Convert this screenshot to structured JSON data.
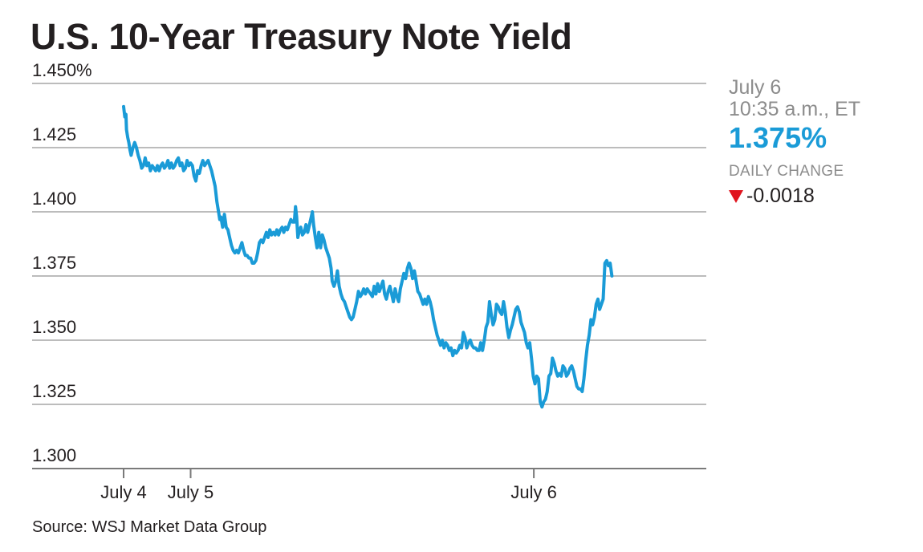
{
  "title": "U.S. 10-Year Treasury Note Yield",
  "source": "Source: WSJ Market Data Group",
  "panel": {
    "date": "July 6",
    "time": "10:35 a.m., ET",
    "value": "1.375%",
    "change_label": "DAILY CHANGE",
    "change_value": "-0.0018",
    "change_direction_icon": "down-triangle-icon"
  },
  "colors": {
    "line": "#1a9bd7",
    "grid": "#a6a6a6",
    "text": "#231f20",
    "muted": "#8c8c8c",
    "down": "#e0141e"
  },
  "chart_data": {
    "type": "line",
    "yticks": [
      "1.450%",
      "1.425",
      "1.400",
      "1.375",
      "1.350",
      "1.325",
      "1.300"
    ],
    "ytick_values": [
      1.45,
      1.425,
      1.4,
      1.375,
      1.35,
      1.325,
      1.3
    ],
    "ylim": [
      1.3,
      1.45
    ],
    "xlim": [
      0,
      1000
    ],
    "xticks": [
      {
        "label": "July 4",
        "x": 0
      },
      {
        "label": "July 5",
        "x": 115
      },
      {
        "label": "July 6",
        "x": 704
      }
    ],
    "grid": "horizontal",
    "series": [
      {
        "points": [
          [
            0,
            1.441
          ],
          [
            2,
            1.437
          ],
          [
            4,
            1.438
          ],
          [
            5,
            1.432
          ],
          [
            7,
            1.429
          ],
          [
            9,
            1.427
          ],
          [
            11,
            1.424
          ],
          [
            13,
            1.422
          ],
          [
            16,
            1.425
          ],
          [
            19,
            1.427
          ],
          [
            22,
            1.425
          ],
          [
            25,
            1.422
          ],
          [
            28,
            1.42
          ],
          [
            31,
            1.417
          ],
          [
            34,
            1.418
          ],
          [
            37,
            1.421
          ],
          [
            40,
            1.418
          ],
          [
            43,
            1.419
          ],
          [
            46,
            1.416
          ],
          [
            49,
            1.418
          ],
          [
            52,
            1.417
          ],
          [
            55,
            1.416
          ],
          [
            58,
            1.418
          ],
          [
            61,
            1.416
          ],
          [
            64,
            1.418
          ],
          [
            67,
            1.419
          ],
          [
            70,
            1.417
          ],
          [
            73,
            1.418
          ],
          [
            76,
            1.42
          ],
          [
            79,
            1.417
          ],
          [
            82,
            1.419
          ],
          [
            85,
            1.417
          ],
          [
            88,
            1.418
          ],
          [
            91,
            1.42
          ],
          [
            94,
            1.421
          ],
          [
            97,
            1.418
          ],
          [
            100,
            1.419
          ],
          [
            103,
            1.416
          ],
          [
            106,
            1.417
          ],
          [
            109,
            1.42
          ],
          [
            112,
            1.418
          ],
          [
            115,
            1.419
          ],
          [
            118,
            1.418
          ],
          [
            121,
            1.414
          ],
          [
            124,
            1.412
          ],
          [
            127,
            1.416
          ],
          [
            130,
            1.415
          ],
          [
            133,
            1.418
          ],
          [
            136,
            1.42
          ],
          [
            139,
            1.418
          ],
          [
            142,
            1.419
          ],
          [
            145,
            1.42
          ],
          [
            148,
            1.418
          ],
          [
            151,
            1.416
          ],
          [
            154,
            1.413
          ],
          [
            157,
            1.41
          ],
          [
            160,
            1.404
          ],
          [
            163,
            1.4
          ],
          [
            165,
            1.397
          ],
          [
            167,
            1.398
          ],
          [
            170,
            1.394
          ],
          [
            173,
            1.399
          ],
          [
            176,
            1.394
          ],
          [
            179,
            1.393
          ],
          [
            182,
            1.39
          ],
          [
            185,
            1.387
          ],
          [
            188,
            1.385
          ],
          [
            191,
            1.384
          ],
          [
            194,
            1.385
          ],
          [
            197,
            1.384
          ],
          [
            200,
            1.386
          ],
          [
            203,
            1.388
          ],
          [
            206,
            1.385
          ],
          [
            209,
            1.383
          ],
          [
            212,
            1.383
          ],
          [
            215,
            1.382
          ],
          [
            218,
            1.382
          ],
          [
            221,
            1.38
          ],
          [
            224,
            1.38
          ],
          [
            227,
            1.381
          ],
          [
            230,
            1.384
          ],
          [
            233,
            1.388
          ],
          [
            236,
            1.389
          ],
          [
            239,
            1.388
          ],
          [
            242,
            1.39
          ],
          [
            245,
            1.392
          ],
          [
            248,
            1.39
          ],
          [
            251,
            1.393
          ],
          [
            254,
            1.391
          ],
          [
            257,
            1.392
          ],
          [
            260,
            1.391
          ],
          [
            263,
            1.393
          ],
          [
            266,
            1.391
          ],
          [
            269,
            1.393
          ],
          [
            272,
            1.394
          ],
          [
            275,
            1.392
          ],
          [
            278,
            1.394
          ],
          [
            281,
            1.393
          ],
          [
            284,
            1.395
          ],
          [
            287,
            1.397
          ],
          [
            290,
            1.396
          ],
          [
            293,
            1.396
          ],
          [
            295,
            1.402
          ],
          [
            297,
            1.398
          ],
          [
            299,
            1.39
          ],
          [
            301,
            1.392
          ],
          [
            304,
            1.394
          ],
          [
            307,
            1.391
          ],
          [
            310,
            1.392
          ],
          [
            313,
            1.395
          ],
          [
            316,
            1.392
          ],
          [
            319,
            1.395
          ],
          [
            322,
            1.398
          ],
          [
            324,
            1.4
          ],
          [
            326,
            1.395
          ],
          [
            329,
            1.39
          ],
          [
            332,
            1.386
          ],
          [
            335,
            1.392
          ],
          [
            338,
            1.386
          ],
          [
            341,
            1.391
          ],
          [
            344,
            1.389
          ],
          [
            347,
            1.386
          ],
          [
            350,
            1.384
          ],
          [
            353,
            1.382
          ],
          [
            356,
            1.378
          ],
          [
            358,
            1.373
          ],
          [
            361,
            1.371
          ],
          [
            364,
            1.373
          ],
          [
            367,
            1.377
          ],
          [
            370,
            1.371
          ],
          [
            373,
            1.368
          ],
          [
            376,
            1.366
          ],
          [
            379,
            1.365
          ],
          [
            382,
            1.363
          ],
          [
            385,
            1.361
          ],
          [
            388,
            1.359
          ],
          [
            391,
            1.358
          ],
          [
            394,
            1.359
          ],
          [
            397,
            1.362
          ],
          [
            400,
            1.365
          ],
          [
            403,
            1.369
          ],
          [
            406,
            1.367
          ],
          [
            409,
            1.368
          ],
          [
            412,
            1.37
          ],
          [
            415,
            1.368
          ],
          [
            418,
            1.37
          ],
          [
            421,
            1.369
          ],
          [
            424,
            1.368
          ],
          [
            427,
            1.367
          ],
          [
            430,
            1.371
          ],
          [
            433,
            1.368
          ],
          [
            436,
            1.372
          ],
          [
            439,
            1.369
          ],
          [
            442,
            1.371
          ],
          [
            445,
            1.373
          ],
          [
            448,
            1.368
          ],
          [
            451,
            1.366
          ],
          [
            454,
            1.369
          ],
          [
            457,
            1.371
          ],
          [
            460,
            1.368
          ],
          [
            463,
            1.365
          ],
          [
            466,
            1.37
          ],
          [
            469,
            1.367
          ],
          [
            472,
            1.365
          ],
          [
            475,
            1.37
          ],
          [
            478,
            1.373
          ],
          [
            481,
            1.376
          ],
          [
            484,
            1.374
          ],
          [
            487,
            1.378
          ],
          [
            490,
            1.38
          ],
          [
            493,
            1.378
          ],
          [
            496,
            1.374
          ],
          [
            499,
            1.377
          ],
          [
            502,
            1.373
          ],
          [
            505,
            1.369
          ],
          [
            508,
            1.368
          ],
          [
            511,
            1.366
          ],
          [
            514,
            1.364
          ],
          [
            517,
            1.366
          ],
          [
            520,
            1.364
          ],
          [
            523,
            1.367
          ],
          [
            526,
            1.365
          ],
          [
            529,
            1.362
          ],
          [
            532,
            1.358
          ],
          [
            535,
            1.355
          ],
          [
            538,
            1.352
          ],
          [
            541,
            1.35
          ],
          [
            544,
            1.348
          ],
          [
            547,
            1.35
          ],
          [
            550,
            1.347
          ],
          [
            553,
            1.349
          ],
          [
            556,
            1.348
          ],
          [
            559,
            1.346
          ],
          [
            562,
            1.347
          ],
          [
            565,
            1.344
          ],
          [
            568,
            1.346
          ],
          [
            571,
            1.345
          ],
          [
            574,
            1.346
          ],
          [
            577,
            1.348
          ],
          [
            580,
            1.347
          ],
          [
            583,
            1.353
          ],
          [
            586,
            1.351
          ],
          [
            589,
            1.347
          ],
          [
            592,
            1.349
          ],
          [
            595,
            1.35
          ],
          [
            598,
            1.348
          ],
          [
            601,
            1.347
          ],
          [
            604,
            1.347
          ],
          [
            607,
            1.346
          ],
          [
            610,
            1.346
          ],
          [
            613,
            1.349
          ],
          [
            616,
            1.346
          ],
          [
            619,
            1.35
          ],
          [
            622,
            1.355
          ],
          [
            625,
            1.357
          ],
          [
            628,
            1.365
          ],
          [
            631,
            1.36
          ],
          [
            634,
            1.356
          ],
          [
            637,
            1.358
          ],
          [
            640,
            1.364
          ],
          [
            643,
            1.363
          ],
          [
            646,
            1.361
          ],
          [
            649,
            1.36
          ],
          [
            652,
            1.365
          ],
          [
            655,
            1.361
          ],
          [
            658,
            1.355
          ],
          [
            661,
            1.351
          ],
          [
            664,
            1.354
          ],
          [
            667,
            1.356
          ],
          [
            670,
            1.359
          ],
          [
            673,
            1.362
          ],
          [
            676,
            1.363
          ],
          [
            679,
            1.361
          ],
          [
            682,
            1.357
          ],
          [
            685,
            1.355
          ],
          [
            688,
            1.353
          ],
          [
            691,
            1.349
          ],
          [
            694,
            1.347
          ],
          [
            697,
            1.349
          ],
          [
            700,
            1.343
          ],
          [
            703,
            1.336
          ],
          [
            706,
            1.333
          ],
          [
            709,
            1.336
          ],
          [
            712,
            1.335
          ],
          [
            715,
            1.326
          ],
          [
            718,
            1.324
          ],
          [
            721,
            1.326
          ],
          [
            724,
            1.327
          ],
          [
            727,
            1.33
          ],
          [
            730,
            1.336
          ],
          [
            733,
            1.337
          ],
          [
            736,
            1.343
          ],
          [
            739,
            1.341
          ],
          [
            742,
            1.338
          ],
          [
            745,
            1.336
          ],
          [
            748,
            1.337
          ],
          [
            751,
            1.336
          ],
          [
            754,
            1.34
          ],
          [
            757,
            1.339
          ],
          [
            760,
            1.336
          ],
          [
            763,
            1.337
          ],
          [
            766,
            1.339
          ],
          [
            769,
            1.34
          ],
          [
            772,
            1.338
          ],
          [
            775,
            1.335
          ],
          [
            778,
            1.332
          ],
          [
            781,
            1.331
          ],
          [
            784,
            1.331
          ],
          [
            787,
            1.33
          ],
          [
            790,
            1.335
          ],
          [
            793,
            1.342
          ],
          [
            796,
            1.348
          ],
          [
            799,
            1.352
          ],
          [
            802,
            1.358
          ],
          [
            805,
            1.356
          ],
          [
            808,
            1.359
          ],
          [
            811,
            1.364
          ],
          [
            814,
            1.366
          ],
          [
            817,
            1.362
          ],
          [
            820,
            1.364
          ],
          [
            823,
            1.366
          ],
          [
            826,
            1.38
          ],
          [
            829,
            1.381
          ],
          [
            832,
            1.379
          ],
          [
            835,
            1.38
          ],
          [
            838,
            1.375
          ]
        ]
      }
    ]
  }
}
